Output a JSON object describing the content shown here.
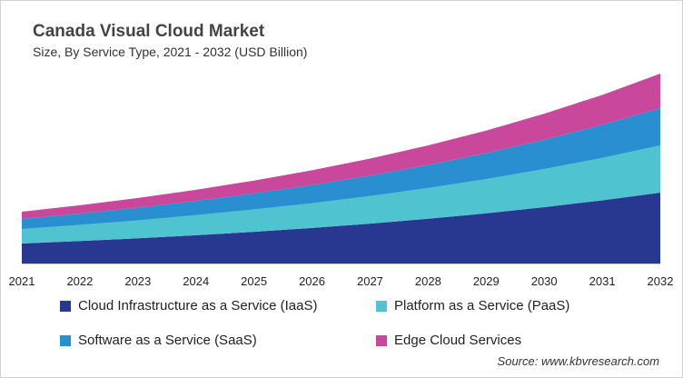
{
  "chart_data": {
    "type": "area",
    "stacked": true,
    "title": "Canada Visual Cloud Market",
    "subtitle": "Size, By Service Type, 2021 - 2032 (USD Billion)",
    "x": [
      "2021",
      "2022",
      "2023",
      "2024",
      "2025",
      "2026",
      "2027",
      "2028",
      "2029",
      "2030",
      "2031",
      "2032"
    ],
    "ylim": [
      0,
      220
    ],
    "y_axis_visible": false,
    "grid": false,
    "legend_placement": "bottom",
    "series": [
      {
        "name": "Cloud Infrastructure as a Service (IaaS)",
        "color": "#283891",
        "values": [
          22,
          24.7,
          27.7,
          31.1,
          34.9,
          39.1,
          43.9,
          49.2,
          55.2,
          62.0,
          69.5,
          78
        ]
      },
      {
        "name": "Platform as a Service (PaaS)",
        "color": "#4fc3cf",
        "values": [
          16,
          17.8,
          19.8,
          22.1,
          24.6,
          27.3,
          30.4,
          33.9,
          37.7,
          42.0,
          46.7,
          52
        ]
      },
      {
        "name": "Software as a Service (SaaS)",
        "color": "#2a8fd0",
        "values": [
          11,
          12.4,
          14.0,
          15.7,
          17.7,
          20.0,
          22.5,
          25.4,
          28.6,
          32.3,
          36.4,
          41
        ]
      },
      {
        "name": "Edge Cloud Services",
        "color": "#c9489c",
        "values": [
          8,
          9.2,
          10.6,
          12.2,
          14.1,
          16.2,
          18.7,
          21.5,
          24.8,
          28.6,
          32.9,
          38
        ]
      }
    ]
  },
  "source": "Source: www.kbvresearch.com"
}
